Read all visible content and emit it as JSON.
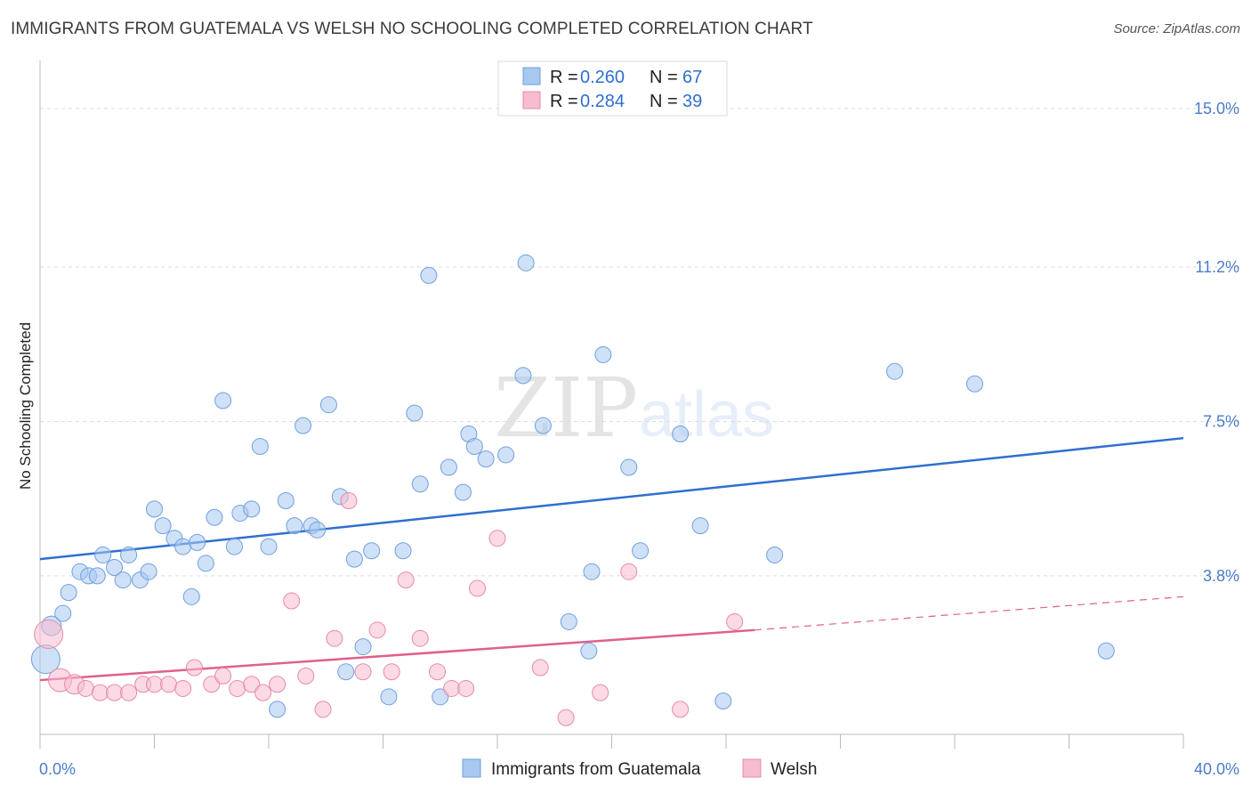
{
  "header": {
    "title": "IMMIGRANTS FROM GUATEMALA VS WELSH NO SCHOOLING COMPLETED CORRELATION CHART",
    "source": "Source: ZipAtlas.com"
  },
  "watermark": {
    "zip": "ZIP",
    "atlas": "atlas"
  },
  "colors": {
    "blue_fill": "#a8c8f0",
    "blue_stroke": "#6f9fe0",
    "blue_line": "#2f6fcf",
    "pink_fill": "#f7bcd0",
    "pink_stroke": "#e889a8",
    "pink_line": "#e0608a",
    "tick_text": "#4a7cc9",
    "grid": "#dddddd"
  },
  "legend": {
    "rows": [
      {
        "r_label": "R =",
        "r_value": "0.260",
        "n_label": "N =",
        "n_value": "67",
        "series": "blue"
      },
      {
        "r_label": "R =",
        "r_value": "0.284",
        "n_label": "N =",
        "n_value": "39",
        "series": "pink"
      }
    ]
  },
  "chart_data": {
    "type": "scatter",
    "title": "IMMIGRANTS FROM GUATEMALA VS WELSH NO SCHOOLING COMPLETED CORRELATION CHART",
    "xlabel": "",
    "ylabel": "No Schooling Completed",
    "xlim": [
      0,
      40
    ],
    "ylim": [
      0,
      16
    ],
    "x_tick_labels": [
      "0.0%",
      "40.0%"
    ],
    "y_ticks": [
      3.8,
      7.5,
      11.2,
      15.0
    ],
    "y_tick_labels": [
      "3.8%",
      "7.5%",
      "11.2%",
      "15.0%"
    ],
    "grid": true,
    "legend_position": "top-center",
    "series": [
      {
        "name": "Immigrants from Guatemala",
        "color": "blue",
        "trend": {
          "x": [
            0,
            40
          ],
          "y": [
            4.2,
            7.1
          ]
        },
        "points": [
          [
            0.2,
            1.8,
            16
          ],
          [
            0.4,
            2.6,
            11
          ],
          [
            0.8,
            2.9,
            9
          ],
          [
            1.0,
            3.4,
            9
          ],
          [
            1.4,
            3.9,
            9
          ],
          [
            1.7,
            3.8,
            9
          ],
          [
            2.0,
            3.8,
            9
          ],
          [
            2.2,
            4.3,
            9
          ],
          [
            2.6,
            4.0,
            9
          ],
          [
            2.9,
            3.7,
            9
          ],
          [
            3.1,
            4.3,
            9
          ],
          [
            3.5,
            3.7,
            9
          ],
          [
            3.8,
            3.9,
            9
          ],
          [
            4.0,
            5.4,
            9
          ],
          [
            4.3,
            5.0,
            9
          ],
          [
            4.7,
            4.7,
            9
          ],
          [
            5.0,
            4.5,
            9
          ],
          [
            5.5,
            4.6,
            9
          ],
          [
            5.3,
            3.3,
            9
          ],
          [
            5.8,
            4.1,
            9
          ],
          [
            6.1,
            5.2,
            9
          ],
          [
            6.4,
            8.0,
            9
          ],
          [
            6.8,
            4.5,
            9
          ],
          [
            7.0,
            5.3,
            9
          ],
          [
            7.4,
            5.4,
            9
          ],
          [
            7.7,
            6.9,
            9
          ],
          [
            8.0,
            4.5,
            9
          ],
          [
            8.3,
            0.6,
            9
          ],
          [
            8.6,
            5.6,
            9
          ],
          [
            8.9,
            5.0,
            9
          ],
          [
            9.2,
            7.4,
            9
          ],
          [
            9.5,
            5.0,
            9
          ],
          [
            9.7,
            4.9,
            9
          ],
          [
            10.1,
            7.9,
            9
          ],
          [
            10.5,
            5.7,
            9
          ],
          [
            10.7,
            1.5,
            9
          ],
          [
            11.0,
            4.2,
            9
          ],
          [
            11.3,
            2.1,
            9
          ],
          [
            11.6,
            4.4,
            9
          ],
          [
            12.2,
            0.9,
            9
          ],
          [
            12.7,
            4.4,
            9
          ],
          [
            13.1,
            7.7,
            9
          ],
          [
            13.3,
            6.0,
            9
          ],
          [
            13.6,
            11.0,
            9
          ],
          [
            14.0,
            0.9,
            9
          ],
          [
            14.3,
            6.4,
            9
          ],
          [
            14.8,
            5.8,
            9
          ],
          [
            15.0,
            7.2,
            9
          ],
          [
            15.2,
            6.9,
            9
          ],
          [
            15.6,
            6.6,
            9
          ],
          [
            16.3,
            6.7,
            9
          ],
          [
            16.9,
            8.6,
            9
          ],
          [
            17.0,
            11.3,
            9
          ],
          [
            17.6,
            7.4,
            9
          ],
          [
            18.5,
            2.7,
            9
          ],
          [
            19.2,
            2.0,
            9
          ],
          [
            19.3,
            3.9,
            9
          ],
          [
            19.7,
            9.1,
            9
          ],
          [
            20.6,
            6.4,
            9
          ],
          [
            21.0,
            4.4,
            9
          ],
          [
            22.4,
            7.2,
            9
          ],
          [
            23.1,
            5.0,
            9
          ],
          [
            23.9,
            0.8,
            9
          ],
          [
            25.7,
            4.3,
            9
          ],
          [
            29.9,
            8.7,
            9
          ],
          [
            32.7,
            8.4,
            9
          ],
          [
            37.3,
            2.0,
            9
          ]
        ]
      },
      {
        "name": "Welsh",
        "color": "pink",
        "trend": {
          "x": [
            0,
            25
          ],
          "y": [
            1.3,
            2.5
          ]
        },
        "trend_extension": {
          "x": [
            25,
            40
          ],
          "y": [
            2.5,
            3.3
          ]
        },
        "points": [
          [
            0.3,
            2.4,
            16
          ],
          [
            0.7,
            1.3,
            13
          ],
          [
            1.2,
            1.2,
            11
          ],
          [
            1.6,
            1.1,
            9
          ],
          [
            2.1,
            1.0,
            9
          ],
          [
            2.6,
            1.0,
            9
          ],
          [
            3.1,
            1.0,
            9
          ],
          [
            3.6,
            1.2,
            9
          ],
          [
            4.0,
            1.2,
            9
          ],
          [
            4.5,
            1.2,
            9
          ],
          [
            5.0,
            1.1,
            9
          ],
          [
            5.4,
            1.6,
            9
          ],
          [
            6.0,
            1.2,
            9
          ],
          [
            6.4,
            1.4,
            9
          ],
          [
            6.9,
            1.1,
            9
          ],
          [
            7.4,
            1.2,
            9
          ],
          [
            7.8,
            1.0,
            9
          ],
          [
            8.3,
            1.2,
            9
          ],
          [
            8.8,
            3.2,
            9
          ],
          [
            9.3,
            1.4,
            9
          ],
          [
            9.9,
            0.6,
            9
          ],
          [
            10.3,
            2.3,
            9
          ],
          [
            10.8,
            5.6,
            9
          ],
          [
            11.3,
            1.5,
            9
          ],
          [
            11.8,
            2.5,
            9
          ],
          [
            12.3,
            1.5,
            9
          ],
          [
            12.8,
            3.7,
            9
          ],
          [
            13.3,
            2.3,
            9
          ],
          [
            13.9,
            1.5,
            9
          ],
          [
            14.4,
            1.1,
            9
          ],
          [
            14.9,
            1.1,
            9
          ],
          [
            15.3,
            3.5,
            9
          ],
          [
            16.0,
            4.7,
            9
          ],
          [
            17.5,
            1.6,
            9
          ],
          [
            18.4,
            0.4,
            9
          ],
          [
            19.6,
            1.0,
            9
          ],
          [
            20.6,
            3.9,
            9
          ],
          [
            22.4,
            0.6,
            9
          ],
          [
            24.3,
            2.7,
            9
          ]
        ]
      }
    ]
  }
}
